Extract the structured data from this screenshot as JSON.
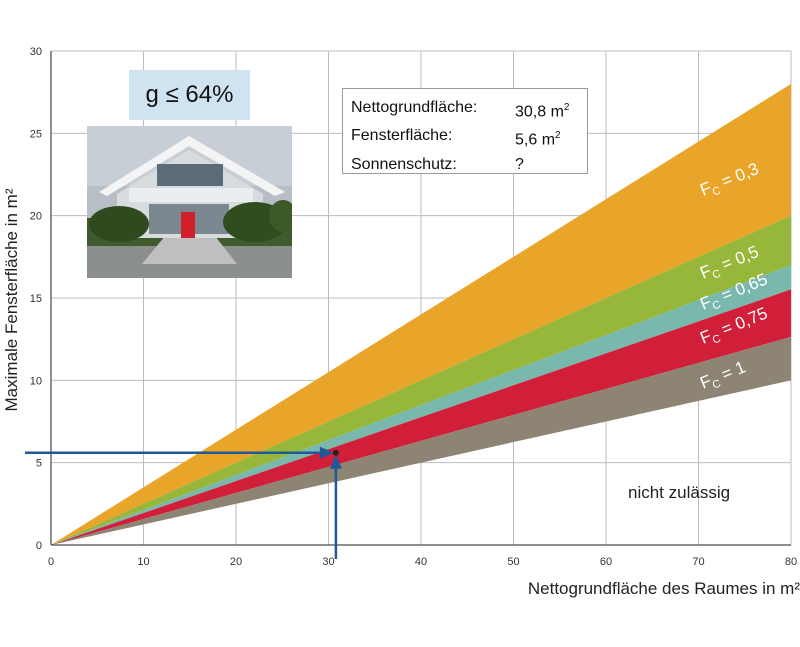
{
  "chart_data": {
    "type": "area",
    "xlabel": "Nettogrundfläche des Raumes in m²",
    "ylabel": "Maximale Fensterfläche in m²",
    "xlim": [
      0,
      80
    ],
    "ylim": [
      0,
      30
    ],
    "xticks": [
      "0",
      "10",
      "20",
      "30",
      "40",
      "50",
      "60",
      "70",
      "80"
    ],
    "yticks": [
      "0",
      "5",
      "10",
      "15",
      "20",
      "25",
      "30"
    ],
    "grid": true,
    "bands": [
      {
        "name": "FC = 0,3",
        "sub_prefix": "F",
        "sub": "C",
        "label_suffix": " = 0,3",
        "color": "#e8a52a",
        "lower_slope": 0.25,
        "upper_slope": 0.35
      },
      {
        "name": "FC = 0,5",
        "sub_prefix": "F",
        "sub": "C",
        "label_suffix": " = 0,5",
        "color": "#97b73a",
        "lower_slope": 0.2125,
        "upper_slope": 0.25
      },
      {
        "name": "FC = 0,65",
        "sub_prefix": "F",
        "sub": "C",
        "label_suffix": " = 0,65",
        "color": "#78b8ad",
        "lower_slope": 0.194,
        "upper_slope": 0.2125
      },
      {
        "name": "FC = 0,75",
        "sub_prefix": "F",
        "sub": "C",
        "label_suffix": " = 0,75",
        "color": "#d11f3a",
        "lower_slope": 0.158,
        "upper_slope": 0.194
      },
      {
        "name": "FC = 1",
        "sub_prefix": "F",
        "sub": "C",
        "label_suffix": " = 1",
        "color": "#8e8474",
        "lower_slope": 0.125,
        "upper_slope": 0.158
      }
    ],
    "marker": {
      "x": 30.8,
      "y": 5.6,
      "color": "#1f5a96"
    },
    "annotation": "nicht zulässig"
  },
  "g_box": "g ≤ 64%",
  "info": [
    {
      "label": "Nettogrundfläche:",
      "value": "30,8 m",
      "sup": "2"
    },
    {
      "label": "Fensterfläche:",
      "value": "5,6 m",
      "sup": "2"
    },
    {
      "label": "Sonnenschutz:",
      "value": "?",
      "sup": ""
    }
  ]
}
